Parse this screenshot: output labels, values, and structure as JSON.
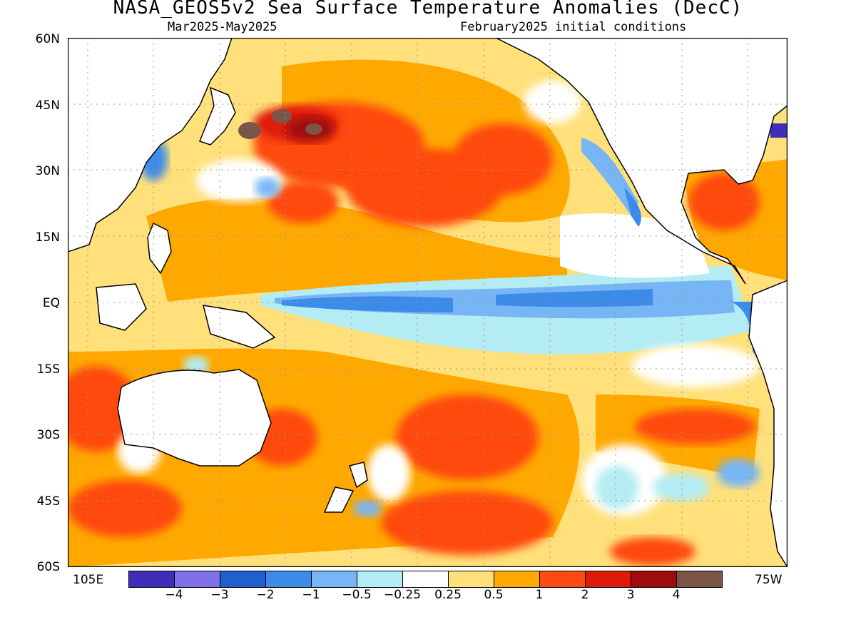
{
  "title": "NASA_GEOS5v2 Sea Surface Temperature Anomalies (DecC)",
  "subtitle_left": "Mar2025-May2025",
  "subtitle_right": "February2025 initial conditions",
  "lat_labels": [
    "60N",
    "45N",
    "30N",
    "15N",
    "EQ",
    "15S",
    "30S",
    "45S",
    "60S"
  ],
  "lon_labels": {
    "left": "105E",
    "right": "75W"
  },
  "colorbar": {
    "colors": [
      "#3f2eb8",
      "#8070e8",
      "#1f5fcf",
      "#3d8be8",
      "#77b5f5",
      "#b3ecf2",
      "#ffffff",
      "#ffe07a",
      "#ffa800",
      "#ff4a10",
      "#e01a0a",
      "#a00c0c",
      "#7a5548"
    ],
    "labels": [
      "-4",
      "-3",
      "-2",
      "-1",
      "-0.5",
      "-0.25",
      "0.25",
      "0.5",
      "1",
      "2",
      "3",
      "4"
    ]
  },
  "colors": {
    "land": "#ffffff",
    "coast": "#000000",
    "grid": "#999999"
  }
}
